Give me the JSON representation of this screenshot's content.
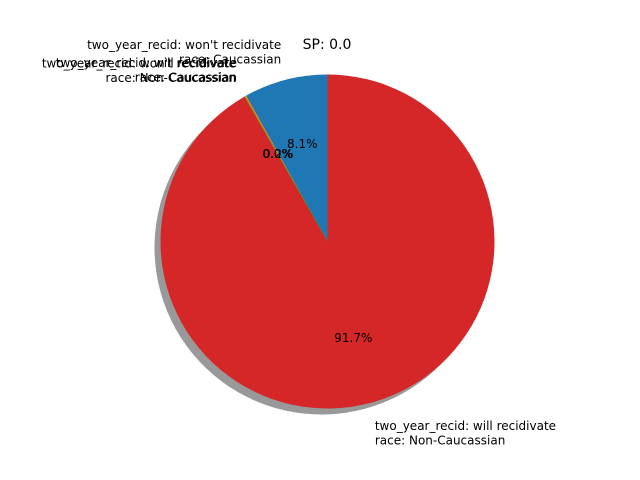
{
  "chart_data": {
    "type": "pie",
    "title": "SP: 0.0",
    "shadow": true,
    "start_angle_deg": 90,
    "direction": "counterclockwise",
    "slices": [
      {
        "label_lines": [
          "two_year_recid: won't recidivate",
          "race: Caucassian"
        ],
        "value": 8.1,
        "pct_label": "8.1%",
        "color": "#1f77b4"
      },
      {
        "label_lines": [
          "two_year_recid: will recidivate",
          "race: Caucassian"
        ],
        "value": 0.2,
        "pct_label": "0.2%",
        "color": "#ff7f0e"
      },
      {
        "label_lines": [
          "two_year_recid: won't recidivate",
          "race: Non-Caucassian"
        ],
        "value": 0.0,
        "pct_label": "0.0%",
        "color": "#2ca02c"
      },
      {
        "label_lines": [
          "two_year_recid: will recidivate",
          "race: Non-Caucassian"
        ],
        "value": 91.7,
        "pct_label": "91.7%",
        "color": "#d62728"
      }
    ]
  }
}
